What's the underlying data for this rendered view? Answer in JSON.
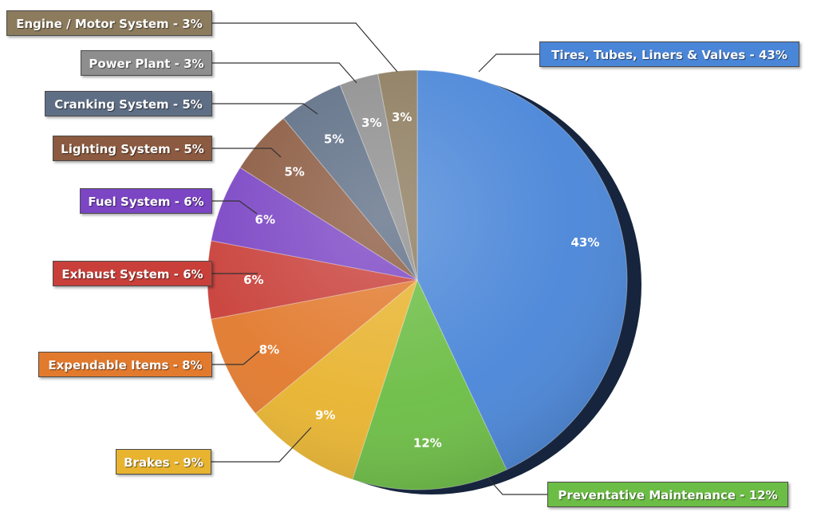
{
  "chart_data": {
    "type": "pie",
    "series": [
      {
        "name": "Tires, Tubes, Liners & Valves",
        "value": 43,
        "label": "43%",
        "legend": "Tires, Tubes, Liners & Valves - 43%",
        "color": "#4a86d8"
      },
      {
        "name": "Preventative Maintenance",
        "value": 12,
        "label": "12%",
        "legend": "Preventative Maintenance - 12%",
        "color": "#6cbd45"
      },
      {
        "name": "Brakes",
        "value": 9,
        "label": "9%",
        "legend": "Brakes - 9%",
        "color": "#e8b430"
      },
      {
        "name": "Expendable Items",
        "value": 8,
        "label": "8%",
        "legend": "Expendable Items - 8%",
        "color": "#e27a2e"
      },
      {
        "name": "Exhaust System",
        "value": 6,
        "label": "6%",
        "legend": "Exhaust System - 6%",
        "color": "#c9403a"
      },
      {
        "name": "Fuel System",
        "value": 6,
        "label": "6%",
        "legend": "Fuel System - 6%",
        "color": "#7b45c4"
      },
      {
        "name": "Lighting System",
        "value": 5,
        "label": "5%",
        "legend": "Lighting System - 5%",
        "color": "#8b5a40"
      },
      {
        "name": "Cranking System",
        "value": 5,
        "label": "5%",
        "legend": "Cranking System - 5%",
        "color": "#5e6e85"
      },
      {
        "name": "Power Plant",
        "value": 3,
        "label": "3%",
        "legend": "Power Plant - 3%",
        "color": "#8e8e8e"
      },
      {
        "name": "Engine / Motor System",
        "value": 3,
        "label": "3%",
        "legend": "Engine / Motor System - 3%",
        "color": "#8c7b5d"
      }
    ],
    "legend_placement": "around"
  }
}
